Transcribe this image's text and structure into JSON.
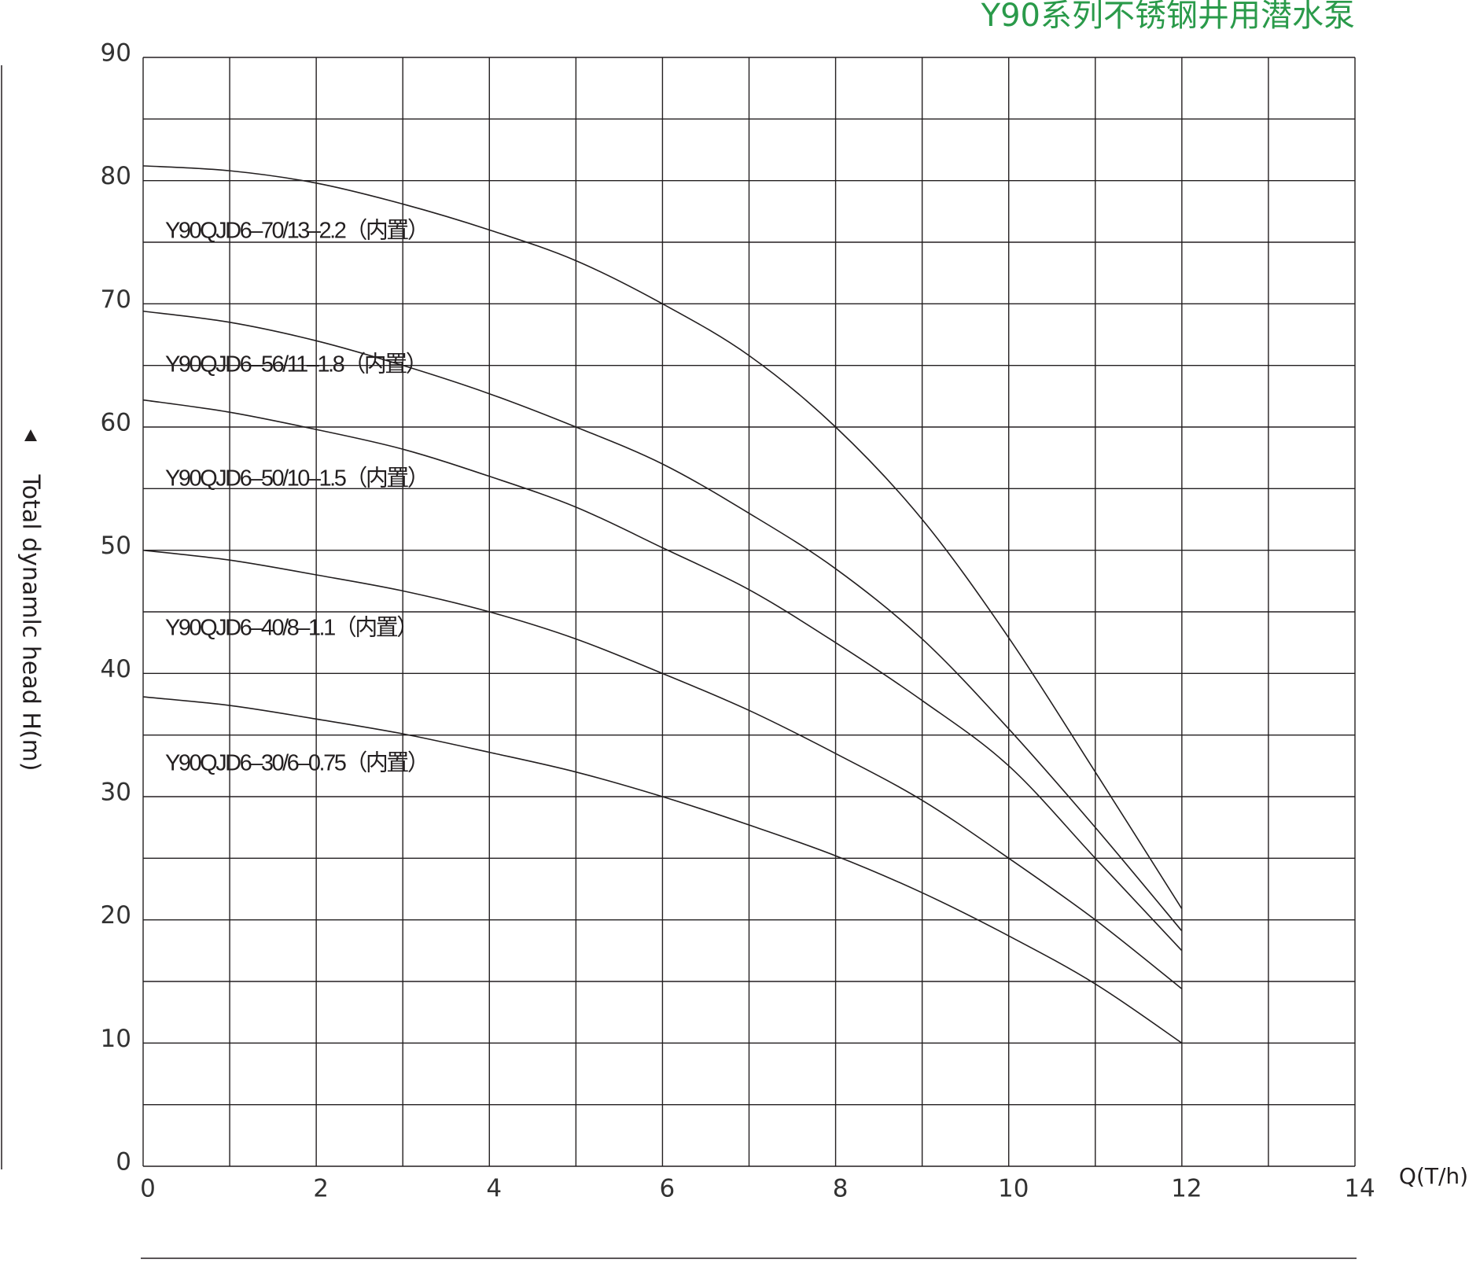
{
  "chart_data": {
    "type": "line",
    "title": "Y90系列不锈钢井用潜水泵",
    "x_label": "Q(T/h)",
    "y_label": "Total dynamlc head H(m)",
    "x": [
      0,
      1,
      2,
      3,
      4,
      5,
      6,
      7,
      8,
      9,
      10,
      11,
      12
    ],
    "series": [
      {
        "name": "Y90QJD6–70/13–2.2（内置）",
        "color": "#231f20",
        "values": [
          81.2,
          80.8,
          79.8,
          78.1,
          76.0,
          73.5,
          70.0,
          65.8,
          60.0,
          52.5,
          42.9,
          32.0,
          20.9
        ]
      },
      {
        "name": "Y90QJD6–56/11–1.8（内置）",
        "color": "#231f20",
        "values": [
          69.4,
          68.5,
          67.0,
          65.0,
          62.7,
          60.0,
          57.0,
          53.0,
          48.5,
          42.8,
          35.5,
          27.5,
          19.1
        ]
      },
      {
        "name": "Y90QJD6–50/10–1.5（内置）",
        "color": "#231f20",
        "values": [
          62.2,
          61.2,
          59.8,
          58.2,
          56.0,
          53.5,
          50.2,
          46.8,
          42.5,
          37.8,
          32.5,
          25.0,
          17.5
        ]
      },
      {
        "name": "Y90QJD6–40/8–1.1（内置）",
        "color": "#231f20",
        "values": [
          50.0,
          49.2,
          48.0,
          46.7,
          45.0,
          42.8,
          40.0,
          37.0,
          33.5,
          29.7,
          25.0,
          20.0,
          14.4
        ]
      },
      {
        "name": "Y90QJD6–30/6–0.75（内置）",
        "color": "#231f20",
        "values": [
          38.1,
          37.4,
          36.3,
          35.1,
          33.6,
          32.0,
          30.0,
          27.7,
          25.2,
          22.2,
          18.7,
          14.8,
          10.0
        ]
      }
    ],
    "xlim": [
      0,
      14
    ],
    "ylim": [
      0,
      90
    ],
    "xticks": [
      0,
      2,
      4,
      6,
      8,
      10,
      12,
      14
    ],
    "yticks": [
      0,
      10,
      20,
      30,
      40,
      50,
      60,
      70,
      80,
      90
    ],
    "x_minor_grid": [
      1,
      3,
      5,
      7,
      9,
      11,
      13
    ],
    "y_minor_grid": [
      5,
      15,
      25,
      35,
      45,
      55,
      65,
      75,
      85
    ],
    "grid": true
  }
}
